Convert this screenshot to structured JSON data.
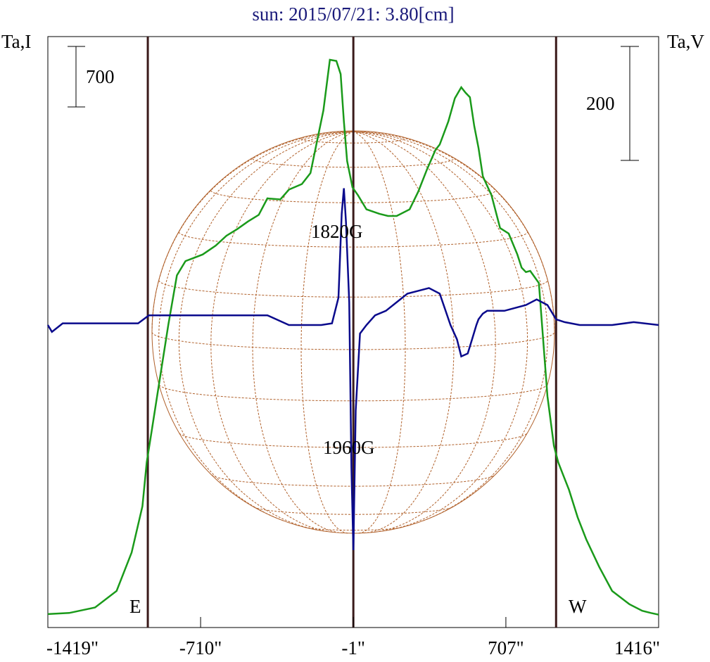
{
  "chart_data": {
    "type": "line",
    "title": "sun: 2015/07/21: 3.80[cm]",
    "ylabel_left": "Ta,I",
    "ylabel_right": "Ta,V",
    "xlim": [
      -1419,
      1416
    ],
    "x_ticks": [
      -1419,
      -710,
      -1,
      707,
      1416
    ],
    "x_tick_labels": [
      "-1419\"",
      "-710\"",
      "-1\"",
      "707\"",
      "1416\""
    ],
    "limb_markers": [
      {
        "label": "E",
        "x": -955
      },
      {
        "label": "",
        "x": -1
      },
      {
        "label": "W",
        "x": 940
      }
    ],
    "scale_bars": {
      "left": {
        "label": "700",
        "value": 700
      },
      "right": {
        "label": "200",
        "value": 200
      }
    },
    "annotations": [
      "1820G",
      "1960G"
    ],
    "colors": {
      "intensity": "#1a9a1a",
      "polarization": "#0a0a8c",
      "limb_lines": "#3a1a1a",
      "disk_grid": "#b0602a",
      "title": "#1a1a7a"
    },
    "series": [
      {
        "key": "I",
        "x": [
          -1419,
          -1320,
          -1200,
          -1100,
          -1030,
          -980,
          -960,
          -940,
          -900,
          -860,
          -820,
          -780,
          -740,
          -700,
          -640,
          -590,
          -540,
          -490,
          -440,
          -400,
          -340,
          -300,
          -240,
          -200,
          -140,
          -110,
          -80,
          -60,
          -45,
          -30,
          -5,
          20,
          60,
          120,
          160,
          200,
          260,
          300,
          340,
          380,
          400,
          440,
          470,
          500,
          520,
          540,
          560,
          580,
          600,
          640,
          680,
          720,
          760,
          780,
          800,
          820,
          860,
          900,
          930,
          950,
          970,
          1000,
          1040,
          1080,
          1140,
          1200,
          1280,
          1340,
          1380,
          1416
        ],
        "y": [
          20,
          30,
          80,
          230,
          580,
          1000,
          1400,
          1650,
          2150,
          2650,
          3100,
          3230,
          3260,
          3290,
          3370,
          3460,
          3520,
          3590,
          3650,
          3800,
          3790,
          3880,
          3930,
          4030,
          4600,
          5060,
          5050,
          4930,
          4500,
          4140,
          3900,
          3830,
          3700,
          3660,
          3640,
          3640,
          3700,
          3860,
          4060,
          4240,
          4290,
          4500,
          4710,
          4810,
          4760,
          4720,
          4460,
          4260,
          4000,
          3830,
          3530,
          3480,
          3290,
          3170,
          3130,
          3140,
          3030,
          2000,
          1550,
          1400,
          1300,
          1150,
          900,
          700,
          450,
          230,
          110,
          50,
          30,
          15
        ]
      },
      {
        "key": "V",
        "x": [
          -1419,
          -1400,
          -1350,
          -1300,
          -1200,
          -1100,
          -1000,
          -950,
          -900,
          -800,
          -700,
          -600,
          -500,
          -400,
          -300,
          -200,
          -150,
          -100,
          -70,
          -55,
          -45,
          -35,
          -20,
          -10,
          -1,
          10,
          30,
          60,
          100,
          150,
          200,
          250,
          300,
          350,
          400,
          450,
          480,
          500,
          530,
          550,
          570,
          580,
          600,
          620,
          650,
          700,
          750,
          800,
          850,
          900,
          940,
          980,
          1050,
          1100,
          1200,
          1300,
          1416
        ],
        "y": [
          0,
          -12,
          3,
          3,
          3,
          3,
          3,
          17,
          17,
          17,
          17,
          17,
          17,
          17,
          0,
          0,
          0,
          3,
          48,
          195,
          240,
          180,
          40,
          -250,
          -395,
          -150,
          -15,
          0,
          17,
          25,
          40,
          55,
          60,
          65,
          55,
          0,
          -25,
          -55,
          -50,
          -25,
          0,
          10,
          20,
          25,
          25,
          25,
          30,
          35,
          45,
          35,
          10,
          5,
          0,
          0,
          0,
          5,
          0
        ]
      }
    ]
  }
}
